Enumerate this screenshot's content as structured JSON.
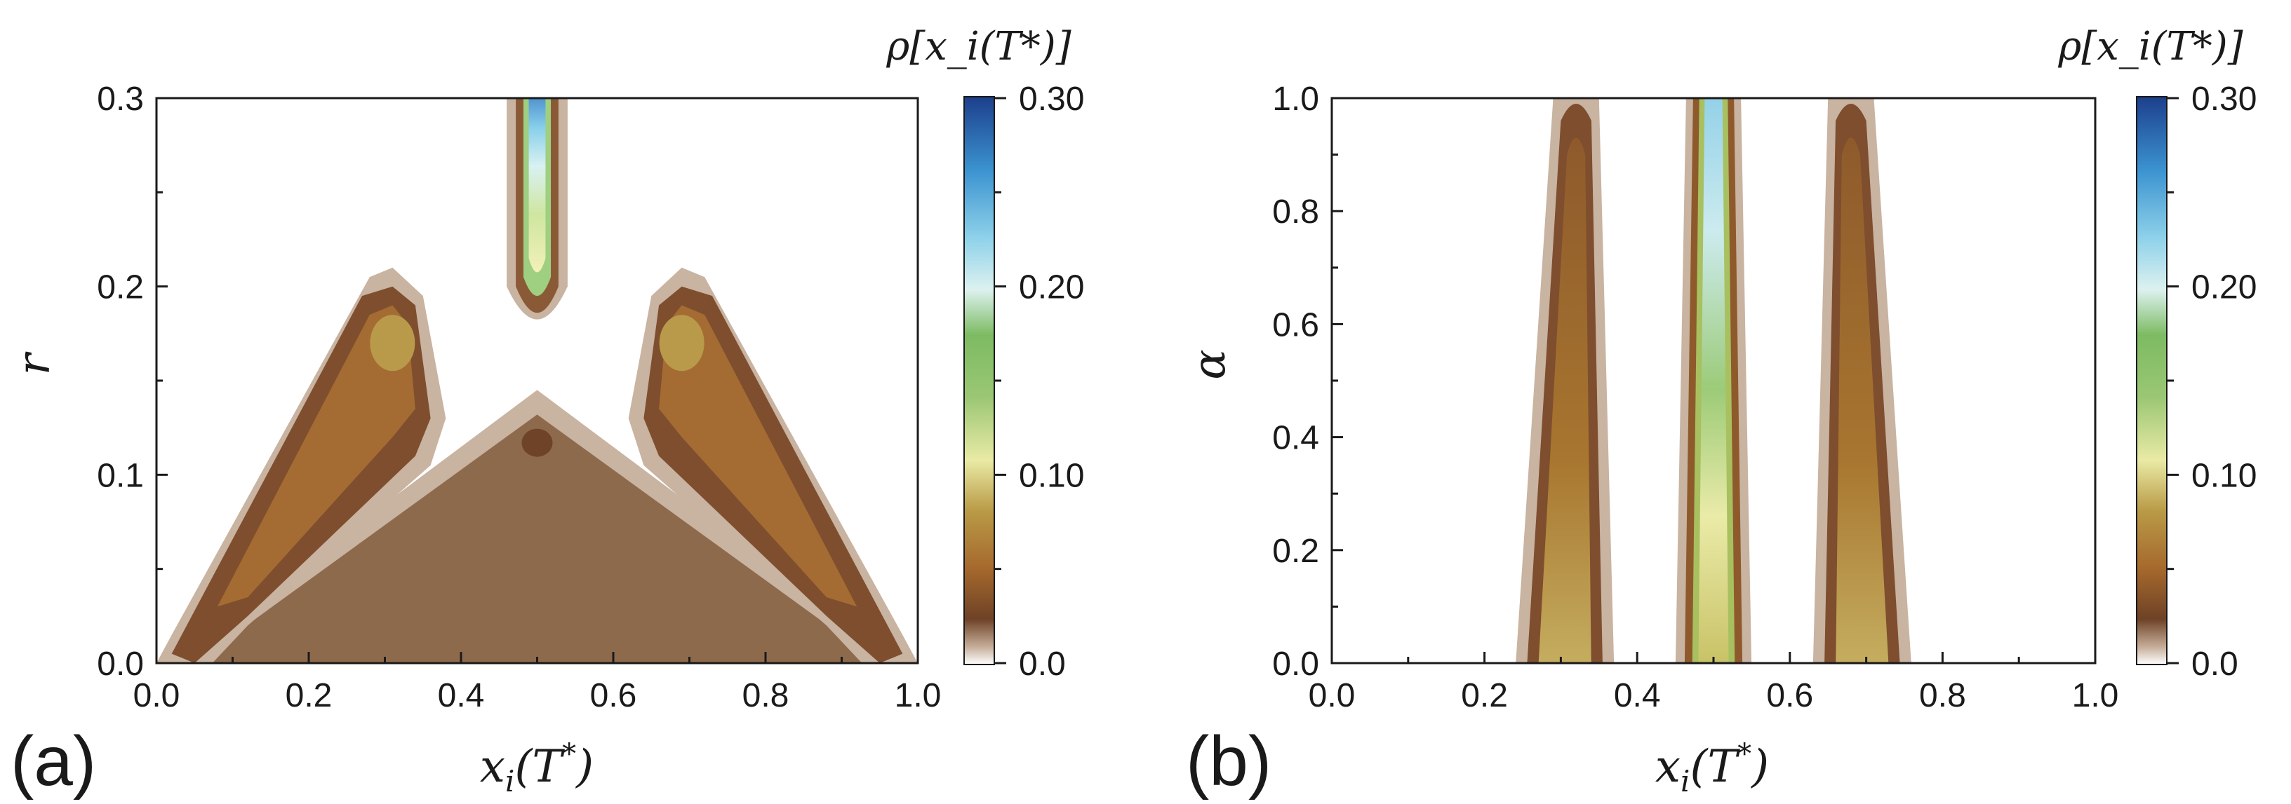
{
  "chart_data": [
    {
      "type": "heatmap",
      "panel_label": "(a)",
      "xlabel": "x_i(T*)",
      "ylabel": "r",
      "xlim": [
        0.0,
        1.0
      ],
      "ylim": [
        0.0,
        0.3
      ],
      "x_ticks": [
        "0.0",
        "0.2",
        "0.4",
        "0.6",
        "0.8",
        "1.0"
      ],
      "y_ticks": [
        "0.0",
        "0.1",
        "0.2",
        "0.3"
      ],
      "x_tick_values": [
        0.0,
        0.2,
        0.4,
        0.6,
        0.8,
        1.0
      ],
      "y_tick_values": [
        0.0,
        0.1,
        0.2,
        0.3
      ],
      "colorbar": {
        "title": "ρ[x_i(T*)]",
        "ticks": [
          "0.0",
          "0.10",
          "0.20",
          "0.30"
        ],
        "tick_values": [
          0.0,
          0.1,
          0.2,
          0.3
        ],
        "range": [
          0.0,
          0.3
        ]
      },
      "features": [
        {
          "name": "central-branch",
          "x_center": 0.5,
          "r_range": [
            0.19,
            0.3
          ],
          "peak_density": 0.29
        },
        {
          "name": "left-branch",
          "x_range": [
            0.02,
            0.33
          ],
          "r_range": [
            0.0,
            0.2
          ],
          "peak_density": 0.09
        },
        {
          "name": "right-branch",
          "x_range": [
            0.67,
            0.98
          ],
          "r_range": [
            0.0,
            0.2
          ],
          "peak_density": 0.09
        },
        {
          "name": "broad-region",
          "x_range": [
            0.05,
            0.95
          ],
          "r_range": [
            0.0,
            0.14
          ],
          "peak_density": 0.03
        }
      ]
    },
    {
      "type": "heatmap",
      "panel_label": "(b)",
      "xlabel": "x_i(T*)",
      "ylabel": "α",
      "xlim": [
        0.0,
        1.0
      ],
      "ylim": [
        0.0,
        1.0
      ],
      "x_ticks": [
        "0.0",
        "0.2",
        "0.4",
        "0.6",
        "0.8",
        "1.0"
      ],
      "y_ticks": [
        "0.0",
        "0.2",
        "0.4",
        "0.6",
        "0.8",
        "1.0"
      ],
      "x_tick_values": [
        0.0,
        0.2,
        0.4,
        0.6,
        0.8,
        1.0
      ],
      "y_tick_values": [
        0.0,
        0.2,
        0.4,
        0.6,
        0.8,
        1.0
      ],
      "colorbar": {
        "title": "ρ[x_i(T*)]",
        "ticks": [
          "0.0",
          "0.10",
          "0.20",
          "0.30"
        ],
        "tick_values": [
          0.0,
          0.1,
          0.2,
          0.3
        ],
        "range": [
          0.0,
          0.3
        ]
      },
      "features": [
        {
          "name": "left-band",
          "x_center_bottom": 0.31,
          "x_center_top": 0.32,
          "peak_density": 0.09
        },
        {
          "name": "center-band",
          "x_center": 0.5,
          "peak_density": 0.22
        },
        {
          "name": "right-band",
          "x_center_bottom": 0.69,
          "x_center_top": 0.68,
          "peak_density": 0.09
        }
      ]
    }
  ],
  "colors": {
    "colormap": [
      "#ffffff",
      "#c8b09c",
      "#8a5a36",
      "#a66a2e",
      "#b9a047",
      "#e8eaa6",
      "#8fc06a",
      "#c7e9f0",
      "#5bb4e0",
      "#1d4fa0"
    ],
    "broad_region": "#8e6a4c",
    "frame": "#1a1a1a"
  }
}
